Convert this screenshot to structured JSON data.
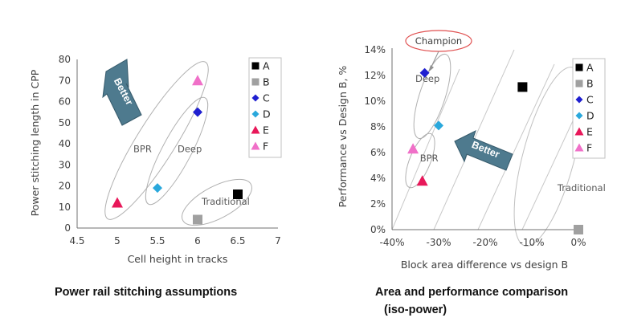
{
  "chart_data": [
    {
      "type": "scatter",
      "title": "Power rail stitching assumptions",
      "xlabel": "Cell height in tracks",
      "ylabel": "Power stitching length in CPP",
      "xlim": [
        4.5,
        7
      ],
      "ylim": [
        0,
        80
      ],
      "x_ticks": [
        "4.5",
        "5",
        "5.5",
        "6",
        "6.5",
        "7"
      ],
      "y_ticks": [
        "0",
        "10",
        "20",
        "30",
        "40",
        "50",
        "60",
        "70",
        "80"
      ],
      "grid": false,
      "legend": "top-right",
      "series": [
        {
          "name": "A",
          "marker": "square",
          "color": "#000000",
          "x": 6.5,
          "y": 16
        },
        {
          "name": "B",
          "marker": "square",
          "color": "#a0a0a0",
          "x": 6.0,
          "y": 4
        },
        {
          "name": "C",
          "marker": "diamond",
          "color": "#1f1fd0",
          "x": 6.0,
          "y": 55
        },
        {
          "name": "D",
          "marker": "diamond",
          "color": "#2aa8dc",
          "x": 5.5,
          "y": 19
        },
        {
          "name": "E",
          "marker": "triangle",
          "color": "#e8185a",
          "x": 5.0,
          "y": 12
        },
        {
          "name": "F",
          "marker": "triangle",
          "color": "#f070c8",
          "x": 6.0,
          "y": 70
        }
      ],
      "annotations": [
        {
          "text": "BPR",
          "x": 5.2,
          "y": 36
        },
        {
          "text": "Deep",
          "x": 5.75,
          "y": 36
        },
        {
          "text": "Traditional",
          "x": 6.05,
          "y": 11
        }
      ],
      "better_label": "Better"
    },
    {
      "type": "scatter",
      "title": "Area and performance comparison (iso-power)",
      "xlabel": "Block area difference vs design B",
      "ylabel": "Performance vs Design B, %",
      "xlim": [
        -40,
        0
      ],
      "ylim": [
        0,
        14
      ],
      "x_ticks": [
        "-40%",
        "-30%",
        "-20%",
        "-10%",
        "0%"
      ],
      "y_ticks": [
        "0%",
        "2%",
        "4%",
        "6%",
        "8%",
        "10%",
        "12%",
        "14%"
      ],
      "grid": false,
      "legend": "top-right",
      "series": [
        {
          "name": "A",
          "marker": "square",
          "color": "#000000",
          "x": -12,
          "y": 11.1
        },
        {
          "name": "B",
          "marker": "square",
          "color": "#a0a0a0",
          "x": 0,
          "y": 0
        },
        {
          "name": "C",
          "marker": "diamond",
          "color": "#1f1fd0",
          "x": -33,
          "y": 12.2
        },
        {
          "name": "D",
          "marker": "diamond",
          "color": "#2aa8dc",
          "x": -30,
          "y": 8.1
        },
        {
          "name": "E",
          "marker": "triangle",
          "color": "#e8185a",
          "x": -33.5,
          "y": 3.8
        },
        {
          "name": "F",
          "marker": "triangle",
          "color": "#f070c8",
          "x": -35.5,
          "y": 6.3
        }
      ],
      "annotations": [
        {
          "text": "Deep",
          "x": -35,
          "y": 11.5
        },
        {
          "text": "BPR",
          "x": -34,
          "y": 5.3
        },
        {
          "text": "Traditional",
          "x": -4.5,
          "y": 3.0
        }
      ],
      "callout": "Champion",
      "better_label": "Better",
      "subtitle": "(iso-power)"
    }
  ]
}
